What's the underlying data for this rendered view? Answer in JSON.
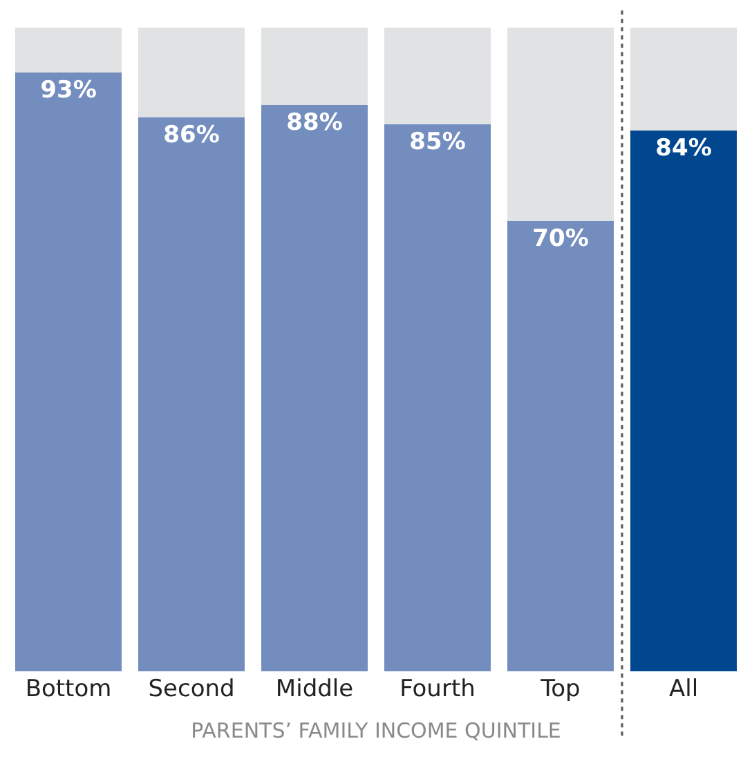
{
  "chart_data": {
    "type": "bar",
    "stacked": true,
    "xlabel": "PARENTS’ FAMILY INCOME QUINTILE",
    "categories": [
      "Bottom",
      "Second",
      "Middle",
      "Fourth",
      "Top",
      "All"
    ],
    "series": [
      {
        "colors": [
          "#748dbf",
          "#748dbf",
          "#748dbf",
          "#748dbf",
          "#748dbf",
          "#00478f"
        ],
        "values": [
          93,
          86,
          88,
          85,
          70,
          84
        ],
        "value_labels": [
          "93%",
          "86%",
          "88%",
          "85%",
          "70%",
          "84%"
        ]
      },
      {
        "color": "#e1e2e4",
        "values": [
          7,
          14,
          12,
          15,
          30,
          16
        ]
      }
    ],
    "ylim": [
      0,
      100
    ],
    "tick_labels": "x"
  }
}
